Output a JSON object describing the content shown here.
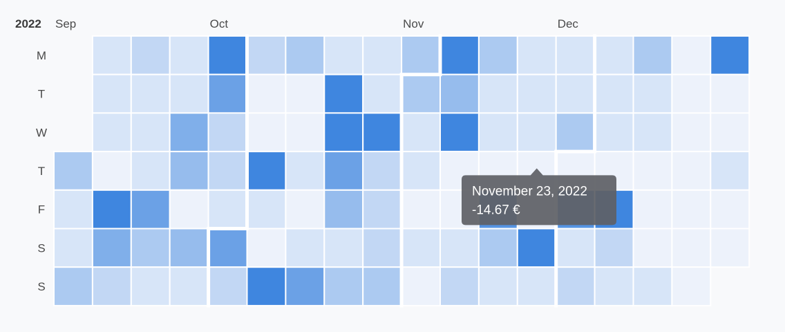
{
  "chart_data": {
    "type": "heatmap",
    "year": "2022",
    "months": [
      {
        "label": "Sep",
        "week_index": 0
      },
      {
        "label": "Oct",
        "week_index": 4
      },
      {
        "label": "Nov",
        "week_index": 9
      },
      {
        "label": "Dec",
        "week_index": 13
      }
    ],
    "day_labels": [
      "M",
      "T",
      "W",
      "T",
      "F",
      "S",
      "S"
    ],
    "weeks": 18,
    "first_day_row": 3,
    "last_day_row": 5,
    "month_starts": [
      {
        "week": 4,
        "row": 5
      },
      {
        "week": 9,
        "row": 1
      },
      {
        "week": 13,
        "row": 3
      }
    ],
    "levels": [
      [
        null,
        2,
        3,
        2,
        9,
        3,
        4,
        2,
        2,
        4,
        9,
        4,
        2,
        2,
        2,
        4,
        1,
        9
      ],
      [
        null,
        2,
        2,
        2,
        7,
        1,
        1,
        9,
        2,
        4,
        5,
        2,
        2,
        2,
        2,
        2,
        1,
        1
      ],
      [
        null,
        2,
        2,
        6,
        3,
        1,
        1,
        9,
        9,
        2,
        9,
        2,
        2,
        4,
        2,
        2,
        1,
        1
      ],
      [
        4,
        1,
        2,
        5,
        3,
        9,
        2,
        7,
        3,
        2,
        1,
        1,
        1,
        1,
        1,
        1,
        1,
        2
      ],
      [
        2,
        9,
        7,
        1,
        2,
        2,
        1,
        5,
        3,
        1,
        1,
        8,
        1,
        8,
        9,
        1,
        1,
        1
      ],
      [
        2,
        6,
        4,
        5,
        7,
        1,
        2,
        2,
        3,
        2,
        2,
        4,
        9,
        2,
        3,
        1,
        1,
        1
      ],
      [
        4,
        3,
        2,
        2,
        3,
        9,
        7,
        4,
        4,
        1,
        3,
        2,
        2,
        3,
        2,
        2,
        1,
        null
      ]
    ],
    "color_scale": [
      "#edf2fb",
      "#3f86df"
    ],
    "tooltip": {
      "date": "November 23, 2022",
      "value": "-14.67 €",
      "week": 12,
      "row": 3
    }
  }
}
